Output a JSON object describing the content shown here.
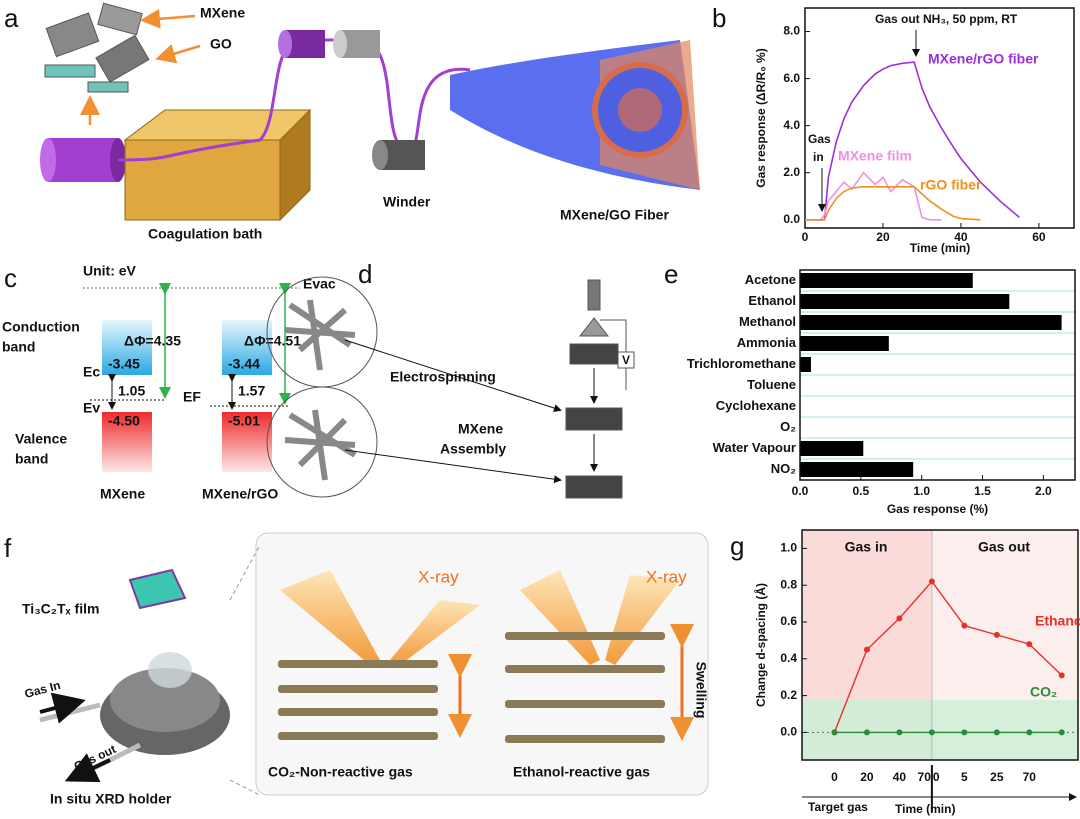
{
  "figure": {
    "panel_labels": [
      "a",
      "b",
      "c",
      "d",
      "e",
      "f",
      "g"
    ]
  },
  "diagrams": {
    "a": {
      "mxene": "MXene",
      "go": "GO",
      "bath": "Coagulation bath",
      "winder": "Winder",
      "fiber": "MXene/GO Fiber"
    },
    "c": {
      "unit": "Unit: eV",
      "evac": "Evac",
      "conduction_band": [
        "Conduction",
        "band"
      ],
      "valence_band": [
        "Valence",
        "band"
      ],
      "ec": "Ec",
      "ev": "Ev",
      "ef": "EF",
      "dphi_mxene": "ΔΦ=4.35",
      "dphi_rgo": "ΔΦ=4.51",
      "cb_mxene": "-3.45",
      "gap_mxene": "1.05",
      "vb_mxene": "-4.50",
      "cb_rgo": "-3.44",
      "gap_rgo": "1.57",
      "vb_rgo": "-5.01",
      "name_mxene": "MXene",
      "name_rgo": "MXene/rGO"
    },
    "d": {
      "electrospinning": "Electrospinning",
      "assembly": [
        "MXene",
        "Assembly"
      ],
      "voltage": "V"
    },
    "f": {
      "film": "Ti₃C₂Tₓ film",
      "gas_in": "Gas In",
      "gas_out": "Gas out",
      "holder": "In situ XRD holder",
      "xray_left": "X-ray",
      "xray_right": "X-ray",
      "swelling": "Swelling",
      "co2": "CO₂-Non-reactive gas",
      "ethanol": "Ethanol-reactive gas"
    }
  },
  "chart_data": [
    {
      "type": "line",
      "y_label": "Gas response (ΔR/R₀ %)",
      "x_label": "Time (min)",
      "annotations": {
        "gas_out": "Gas out NH₃, 50 ppm, RT",
        "gas_in": [
          "Gas",
          "in"
        ]
      },
      "x": [
        0,
        2,
        4,
        5,
        6,
        8,
        10,
        12,
        15,
        18,
        20,
        22,
        25,
        28,
        30,
        32,
        35,
        38,
        40,
        45,
        50,
        55,
        60
      ],
      "xlim": [
        0,
        69
      ],
      "xticks": [
        0,
        20,
        40,
        60
      ],
      "ylim": [
        -0.35,
        9.0
      ],
      "yticks": [
        {
          "value": 0,
          "label": "0.0"
        },
        {
          "value": 2,
          "label": "2.0"
        },
        {
          "value": 4,
          "label": "4.0"
        },
        {
          "value": 6,
          "label": "6.0"
        },
        {
          "value": 8,
          "label": "8.0"
        }
      ],
      "series": [
        {
          "name": "MXene/rGO fiber",
          "color": "#9b30d9",
          "values": [
            0,
            0,
            0,
            0,
            1.8,
            3.3,
            4.3,
            5.0,
            5.7,
            6.2,
            6.4,
            6.55,
            6.65,
            6.7,
            5.6,
            4.8,
            3.9,
            3.1,
            2.6,
            1.6,
            0.8,
            0.1,
            null
          ]
        },
        {
          "name": "MXene film",
          "color": "#f28fe3",
          "values": [
            0,
            0,
            0,
            0.2,
            0.8,
            1.2,
            1.6,
            1.3,
            2.0,
            1.5,
            1.8,
            1.2,
            1.7,
            1.4,
            0.1,
            0,
            0,
            null,
            null,
            null,
            null,
            null,
            null
          ]
        },
        {
          "name": "rGO fiber",
          "color": "#f0901e",
          "values": [
            0,
            0,
            0,
            0,
            0.4,
            0.9,
            1.2,
            1.35,
            1.4,
            1.4,
            1.4,
            1.4,
            1.4,
            1.4,
            1.1,
            0.8,
            0.45,
            0.15,
            0.05,
            0,
            null,
            null,
            null
          ]
        }
      ]
    },
    {
      "type": "hbar",
      "x_label": "Gas response (%)",
      "color": "#000000",
      "grid": true,
      "grid_color": "#9fe3ea",
      "categories": [
        "Acetone",
        "Ethanol",
        "Methanol",
        "Ammonia",
        "Trichloromethane",
        "Toluene",
        "Cyclohexane",
        "O₂",
        "Water Vapour",
        "NO₂"
      ],
      "values": [
        1.42,
        1.72,
        2.15,
        0.73,
        0.09,
        0,
        0,
        0,
        0.52,
        0.93
      ],
      "xlim": [
        0,
        2.26
      ],
      "xticks": [
        {
          "value": 0,
          "label": "0.0"
        },
        {
          "value": 0.5,
          "label": "0.5"
        },
        {
          "value": 1,
          "label": "1.0"
        },
        {
          "value": 1.5,
          "label": "1.5"
        },
        {
          "value": 2,
          "label": "2.0"
        }
      ]
    },
    {
      "type": "line",
      "y_label": "Change d-spacing (Å)",
      "regions": {
        "gas_in": "Gas in",
        "gas_out": "Gas out"
      },
      "axis_notes": {
        "target_gas": "Target gas",
        "time": "Time (min)",
        "gas_out_zero": "0"
      },
      "categories": [
        "0",
        "20",
        "40",
        "70",
        "5",
        "25",
        "70",
        null
      ],
      "ylim": [
        -0.15,
        1.1
      ],
      "yticks": [
        {
          "value": 0,
          "label": "0.0"
        },
        {
          "value": 0.2,
          "label": "0.2"
        },
        {
          "value": 0.4,
          "label": "0.4"
        },
        {
          "value": 0.6,
          "label": "0.6"
        },
        {
          "value": 0.8,
          "label": "0.8"
        },
        {
          "value": 1,
          "label": "1.0"
        }
      ],
      "series": [
        {
          "name": "Ethanol",
          "color": "#e8302a",
          "values": [
            0,
            0.45,
            0.62,
            0.82,
            0.58,
            0.53,
            0.48,
            0.31
          ]
        },
        {
          "name": "CO₂",
          "color": "#2a8a3a",
          "values": [
            0,
            0,
            0,
            0,
            0,
            0,
            0,
            0
          ]
        }
      ]
    }
  ]
}
